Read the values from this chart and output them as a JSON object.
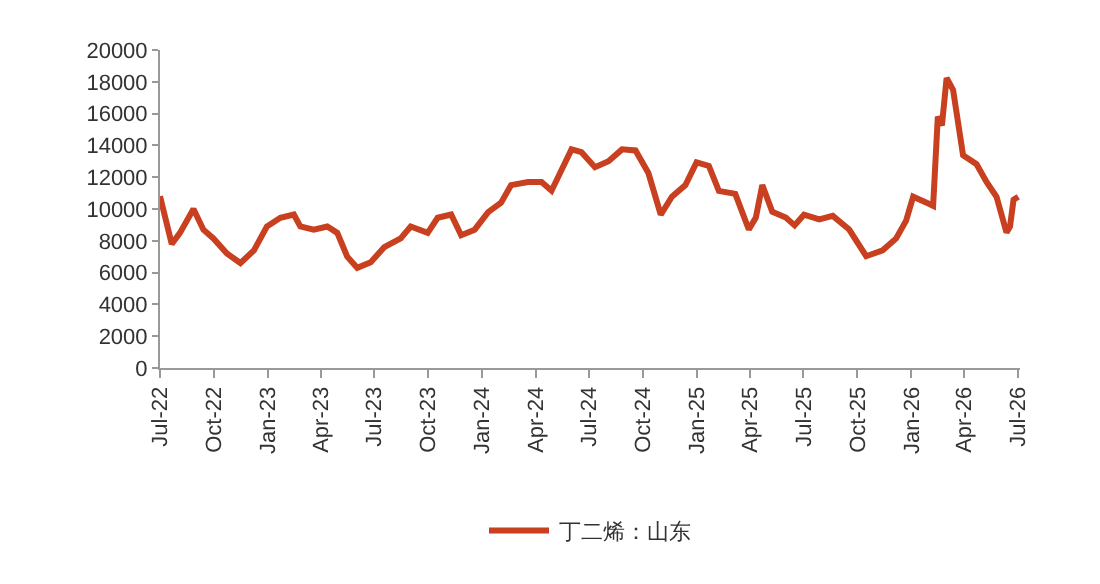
{
  "chart_data": {
    "type": "line",
    "legend": "bottom",
    "grid": false,
    "marker": "none",
    "line_style": "solid",
    "x": [
      "2022-07-01",
      "2022-07-21",
      "2022-08-04",
      "2022-08-27",
      "2022-09-13",
      "2022-09-30",
      "2022-10-23",
      "2022-11-15",
      "2022-12-08",
      "2022-12-30",
      "2023-01-22",
      "2023-02-14",
      "2023-02-25",
      "2023-03-20",
      "2023-04-12",
      "2023-04-29",
      "2023-05-16",
      "2023-06-02",
      "2023-06-25",
      "2023-07-18",
      "2023-08-15",
      "2023-09-01",
      "2023-09-30",
      "2023-10-17",
      "2023-11-09",
      "2023-11-26",
      "2023-12-19",
      "2024-01-11",
      "2024-02-02",
      "2024-02-19",
      "2024-03-19",
      "2024-04-11",
      "2024-04-28",
      "2024-05-15",
      "2024-06-01",
      "2024-06-18",
      "2024-07-11",
      "2024-08-03",
      "2024-08-26",
      "2024-09-18",
      "2024-10-10",
      "2024-10-31",
      "2024-11-19",
      "2024-12-12",
      "2024-12-31",
      "2025-01-21",
      "2025-02-07",
      "2025-03-07",
      "2025-03-30",
      "2025-04-11",
      "2025-04-22",
      "2025-05-09",
      "2025-06-01",
      "2025-06-16",
      "2025-07-02",
      "2025-07-28",
      "2025-08-20",
      "2025-09-17",
      "2025-10-16",
      "2025-11-13",
      "2025-12-06",
      "2025-12-23",
      "2026-01-04",
      "2026-01-27",
      "2026-02-07",
      "2026-02-15",
      "2026-02-22",
      "2026-03-02",
      "2026-03-13",
      "2026-03-30",
      "2026-04-22",
      "2026-05-09",
      "2026-05-26",
      "2026-06-12",
      "2026-06-18",
      "2026-06-24",
      "2026-07-02"
    ],
    "series": [
      {
        "name": "丁二烯：山东",
        "color": "#c8401f",
        "values": [
          10800,
          7800,
          8500,
          10000,
          8700,
          8150,
          7200,
          6600,
          7400,
          8900,
          9450,
          9650,
          8900,
          8700,
          8900,
          8500,
          7000,
          6300,
          6650,
          7600,
          8150,
          8900,
          8500,
          9450,
          9650,
          8350,
          8700,
          9800,
          10400,
          11500,
          11700,
          11700,
          11150,
          12450,
          13750,
          13570,
          12630,
          13000,
          13750,
          13680,
          12260,
          9640,
          10770,
          11500,
          12930,
          12710,
          11140,
          10950,
          8710,
          9460,
          11510,
          9830,
          9460,
          8970,
          9640,
          9350,
          9570,
          8710,
          7030,
          7400,
          8150,
          9270,
          10770,
          10390,
          10200,
          15810,
          15250,
          18240,
          17490,
          13380,
          12820,
          11700,
          10770,
          8520,
          8900,
          10580,
          10770
        ]
      }
    ],
    "xlim": [
      "2022-07-01",
      "2026-07-05"
    ],
    "xticks": [
      {
        "value": "2022-07-01",
        "label": "Jul-22"
      },
      {
        "value": "2022-10-01",
        "label": "Oct-22"
      },
      {
        "value": "2023-01-01",
        "label": "Jan-23"
      },
      {
        "value": "2023-04-01",
        "label": "Apr-23"
      },
      {
        "value": "2023-07-01",
        "label": "Jul-23"
      },
      {
        "value": "2023-10-01",
        "label": "Oct-23"
      },
      {
        "value": "2024-01-01",
        "label": "Jan-24"
      },
      {
        "value": "2024-04-01",
        "label": "Apr-24"
      },
      {
        "value": "2024-07-01",
        "label": "Jul-24"
      },
      {
        "value": "2024-10-01",
        "label": "Oct-24"
      },
      {
        "value": "2025-01-01",
        "label": "Jan-25"
      },
      {
        "value": "2025-04-01",
        "label": "Apr-25"
      },
      {
        "value": "2025-07-01",
        "label": "Jul-25"
      },
      {
        "value": "2025-10-01",
        "label": "Oct-25"
      },
      {
        "value": "2026-01-01",
        "label": "Jan-26"
      },
      {
        "value": "2026-04-01",
        "label": "Apr-26"
      },
      {
        "value": "2026-07-01",
        "label": "Jul-26"
      }
    ],
    "ylim": [
      0,
      20000
    ],
    "yticks": [
      0,
      2000,
      4000,
      6000,
      8000,
      10000,
      12000,
      14000,
      16000,
      18000,
      20000
    ]
  }
}
